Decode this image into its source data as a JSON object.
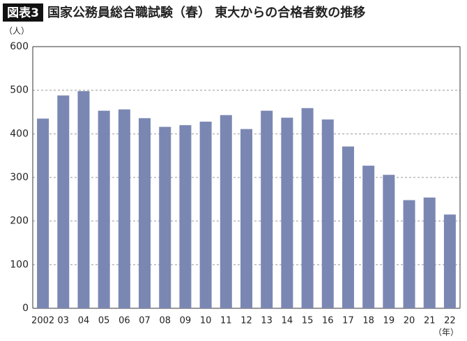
{
  "chart_data": {
    "type": "bar",
    "figure_label": "図表3",
    "title": "国家公務員総合職試験（春） 東大からの合格者数の推移",
    "y_label": "（人）",
    "x_label": "（年）",
    "categories": [
      "2002",
      "03",
      "04",
      "05",
      "06",
      "07",
      "08",
      "09",
      "10",
      "11",
      "12",
      "13",
      "14",
      "15",
      "16",
      "17",
      "18",
      "19",
      "20",
      "21",
      "22"
    ],
    "values": [
      435,
      488,
      498,
      453,
      456,
      436,
      416,
      420,
      428,
      443,
      411,
      453,
      437,
      459,
      433,
      371,
      327,
      306,
      248,
      254,
      215
    ],
    "color": "#7b87b3",
    "ylim": [
      0,
      600
    ],
    "yticks": [
      0,
      100,
      200,
      300,
      400,
      500,
      600
    ],
    "grid": true
  }
}
